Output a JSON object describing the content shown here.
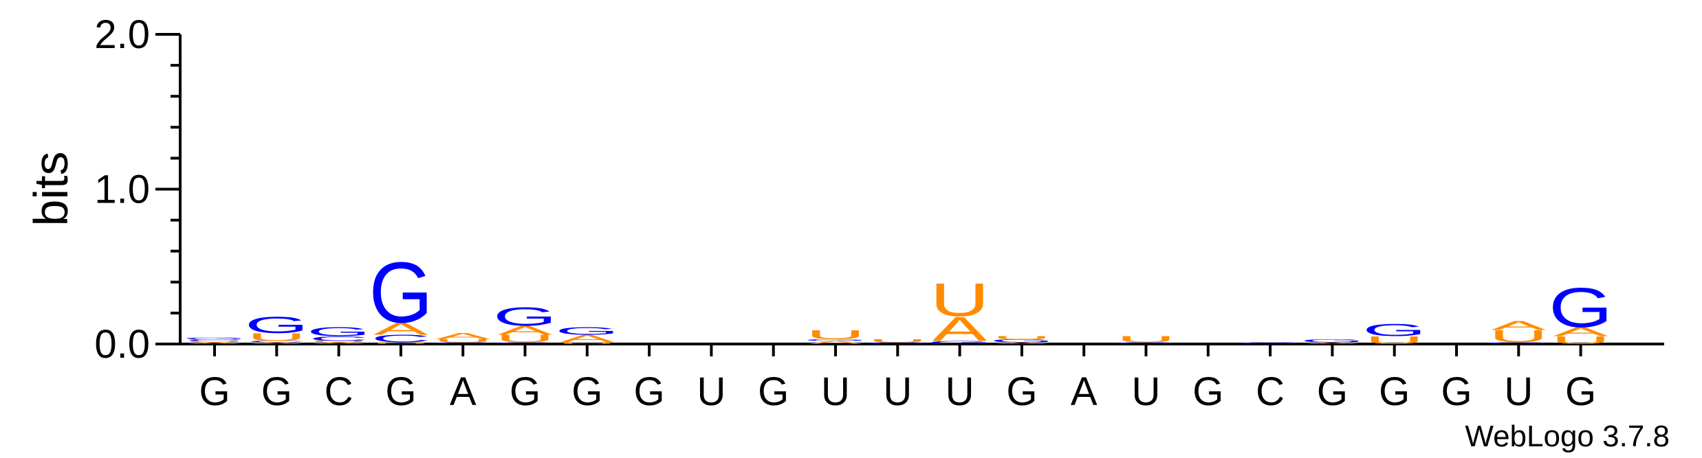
{
  "chart_data": {
    "type": "sequence-logo",
    "ylabel": "bits",
    "ylim": [
      0,
      2.0
    ],
    "yticks": [
      "0.0",
      "1.0",
      "2.0"
    ],
    "colors": {
      "G": "#0000ff",
      "A": "#ff8c00",
      "U": "#ff8c00",
      "C": "#0000ff"
    },
    "positions": [
      {
        "label": "G",
        "stack": [
          {
            "letter": "A",
            "bits": 0.01
          },
          {
            "letter": "U",
            "bits": 0.01
          },
          {
            "letter": "C",
            "bits": 0.01
          },
          {
            "letter": "G",
            "bits": 0.01
          }
        ]
      },
      {
        "label": "G",
        "stack": [
          {
            "letter": "A",
            "bits": 0.01
          },
          {
            "letter": "C",
            "bits": 0.01
          },
          {
            "letter": "U",
            "bits": 0.05
          },
          {
            "letter": "G",
            "bits": 0.11
          }
        ]
      },
      {
        "label": "C",
        "stack": [
          {
            "letter": "A",
            "bits": 0.01
          },
          {
            "letter": "U",
            "bits": 0.01
          },
          {
            "letter": "C",
            "bits": 0.03
          },
          {
            "letter": "G",
            "bits": 0.06
          }
        ]
      },
      {
        "label": "G",
        "stack": [
          {
            "letter": "U",
            "bits": 0.01
          },
          {
            "letter": "C",
            "bits": 0.05
          },
          {
            "letter": "A",
            "bits": 0.08
          },
          {
            "letter": "G",
            "bits": 0.4
          }
        ]
      },
      {
        "label": "A",
        "stack": [
          {
            "letter": "C",
            "bits": 0.01
          },
          {
            "letter": "U",
            "bits": 0.02
          },
          {
            "letter": "A",
            "bits": 0.04
          }
        ]
      },
      {
        "label": "G",
        "stack": [
          {
            "letter": "C",
            "bits": 0.01
          },
          {
            "letter": "U",
            "bits": 0.05
          },
          {
            "letter": "A",
            "bits": 0.06
          },
          {
            "letter": "G",
            "bits": 0.12
          }
        ]
      },
      {
        "label": "G",
        "stack": [
          {
            "letter": "U",
            "bits": 0.01
          },
          {
            "letter": "A",
            "bits": 0.05
          },
          {
            "letter": "G",
            "bits": 0.05
          }
        ]
      },
      {
        "label": "G",
        "stack": []
      },
      {
        "label": "U",
        "stack": []
      },
      {
        "label": "G",
        "stack": []
      },
      {
        "label": "U",
        "stack": [
          {
            "letter": "A",
            "bits": 0.02
          },
          {
            "letter": "G",
            "bits": 0.01
          },
          {
            "letter": "U",
            "bits": 0.06
          }
        ]
      },
      {
        "label": "U",
        "stack": [
          {
            "letter": "G",
            "bits": 0.01
          },
          {
            "letter": "U",
            "bits": 0.02
          }
        ]
      },
      {
        "label": "U",
        "stack": [
          {
            "letter": "G",
            "bits": 0.02
          },
          {
            "letter": "A",
            "bits": 0.16
          },
          {
            "letter": "U",
            "bits": 0.22
          }
        ]
      },
      {
        "label": "G",
        "stack": [
          {
            "letter": "A",
            "bits": 0.01
          },
          {
            "letter": "G",
            "bits": 0.02
          },
          {
            "letter": "U",
            "bits": 0.02
          }
        ]
      },
      {
        "label": "A",
        "stack": []
      },
      {
        "label": "U",
        "stack": [
          {
            "letter": "G",
            "bits": 0.01
          },
          {
            "letter": "U",
            "bits": 0.04
          }
        ]
      },
      {
        "label": "G",
        "stack": []
      },
      {
        "label": "C",
        "stack": [
          {
            "letter": "G",
            "bits": 0.01
          }
        ]
      },
      {
        "label": "G",
        "stack": [
          {
            "letter": "A",
            "bits": 0.01
          },
          {
            "letter": "G",
            "bits": 0.02
          }
        ]
      },
      {
        "label": "G",
        "stack": [
          {
            "letter": "U",
            "bits": 0.05
          },
          {
            "letter": "G",
            "bits": 0.08
          }
        ]
      },
      {
        "label": "G",
        "stack": []
      },
      {
        "label": "U",
        "stack": [
          {
            "letter": "G",
            "bits": 0.01
          },
          {
            "letter": "U",
            "bits": 0.08
          },
          {
            "letter": "A",
            "bits": 0.06
          }
        ]
      },
      {
        "label": "G",
        "stack": [
          {
            "letter": "U",
            "bits": 0.05
          },
          {
            "letter": "A",
            "bits": 0.06
          },
          {
            "letter": "G",
            "bits": 0.26
          }
        ]
      }
    ],
    "credit": "WebLogo 3.7.8"
  }
}
